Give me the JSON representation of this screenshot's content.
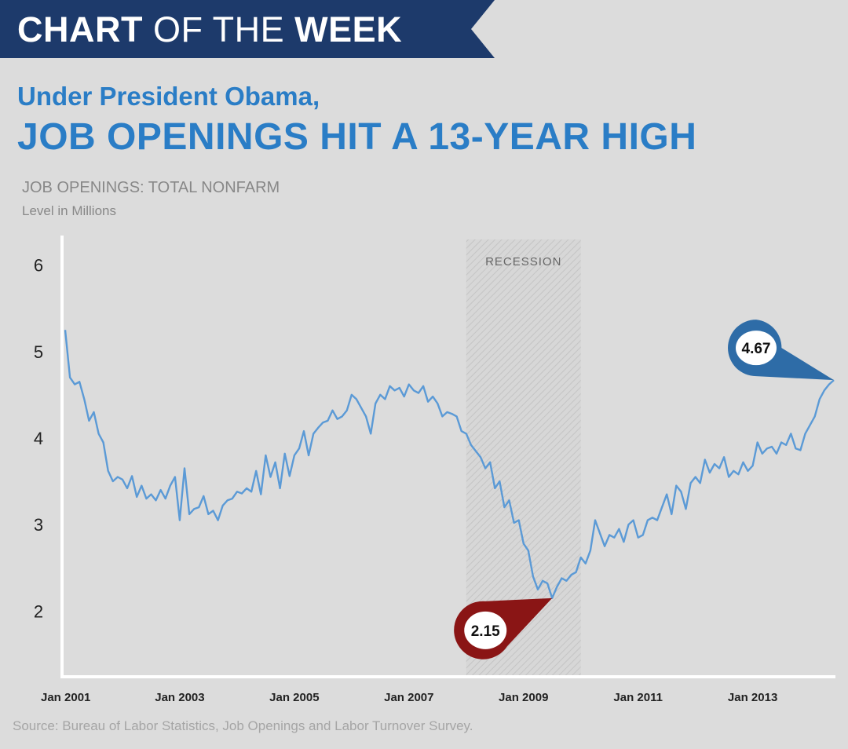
{
  "banner": {
    "part1": "CHART",
    "part2": " OF THE ",
    "part3": "WEEK",
    "color": "#1d3a6b"
  },
  "headline": {
    "subtitle": "Under President Obama,",
    "title": "JOB OPENINGS HIT A 13-YEAR HIGH",
    "color": "#2a7dc6"
  },
  "source": "Source: Bureau of Labor Statistics, Job Openings and Labor Turnover Survey.",
  "chart_data": {
    "type": "line",
    "title": "JOB OPENINGS: TOTAL NONFARM",
    "ylabel": "Level in Millions",
    "xlabel": "",
    "ylim": [
      1.25,
      6.25
    ],
    "yticks": [
      2,
      3,
      4,
      5,
      6
    ],
    "xlim": [
      "2001-01",
      "2014-06"
    ],
    "xticks": [
      {
        "date": "2001-01",
        "label": "Jan 2001"
      },
      {
        "date": "2003-01",
        "label": "Jan 2003"
      },
      {
        "date": "2005-01",
        "label": "Jan 2005"
      },
      {
        "date": "2007-01",
        "label": "Jan 2007"
      },
      {
        "date": "2009-01",
        "label": "Jan 2009"
      },
      {
        "date": "2011-01",
        "label": "Jan 2011"
      },
      {
        "date": "2013-01",
        "label": "Jan 2013"
      }
    ],
    "grid": false,
    "line_color": "#5b9ad6",
    "recession": {
      "start": "2008-01",
      "end": "2010-01",
      "label": "RECESSION"
    },
    "series": [
      {
        "points": [
          [
            "2001-01",
            5.25
          ],
          [
            "2001-02",
            4.7
          ],
          [
            "2001-03",
            4.62
          ],
          [
            "2001-04",
            4.65
          ],
          [
            "2001-05",
            4.45
          ],
          [
            "2001-06",
            4.2
          ],
          [
            "2001-07",
            4.3
          ],
          [
            "2001-08",
            4.05
          ],
          [
            "2001-09",
            3.95
          ],
          [
            "2001-10",
            3.62
          ],
          [
            "2001-11",
            3.5
          ],
          [
            "2001-12",
            3.55
          ],
          [
            "2002-01",
            3.52
          ],
          [
            "2002-02",
            3.42
          ],
          [
            "2002-03",
            3.56
          ],
          [
            "2002-04",
            3.32
          ],
          [
            "2002-05",
            3.45
          ],
          [
            "2002-06",
            3.3
          ],
          [
            "2002-07",
            3.35
          ],
          [
            "2002-08",
            3.28
          ],
          [
            "2002-09",
            3.4
          ],
          [
            "2002-10",
            3.3
          ],
          [
            "2002-11",
            3.45
          ],
          [
            "2002-12",
            3.55
          ],
          [
            "2003-01",
            3.05
          ],
          [
            "2003-02",
            3.65
          ],
          [
            "2003-03",
            3.12
          ],
          [
            "2003-04",
            3.18
          ],
          [
            "2003-05",
            3.2
          ],
          [
            "2003-06",
            3.33
          ],
          [
            "2003-07",
            3.12
          ],
          [
            "2003-08",
            3.16
          ],
          [
            "2003-09",
            3.05
          ],
          [
            "2003-10",
            3.22
          ],
          [
            "2003-11",
            3.28
          ],
          [
            "2003-12",
            3.3
          ],
          [
            "2004-01",
            3.38
          ],
          [
            "2004-02",
            3.36
          ],
          [
            "2004-03",
            3.42
          ],
          [
            "2004-04",
            3.38
          ],
          [
            "2004-05",
            3.62
          ],
          [
            "2004-06",
            3.35
          ],
          [
            "2004-07",
            3.8
          ],
          [
            "2004-08",
            3.55
          ],
          [
            "2004-09",
            3.72
          ],
          [
            "2004-10",
            3.42
          ],
          [
            "2004-11",
            3.82
          ],
          [
            "2004-12",
            3.56
          ],
          [
            "2005-01",
            3.8
          ],
          [
            "2005-02",
            3.88
          ],
          [
            "2005-03",
            4.08
          ],
          [
            "2005-04",
            3.8
          ],
          [
            "2005-05",
            4.05
          ],
          [
            "2005-06",
            4.12
          ],
          [
            "2005-07",
            4.18
          ],
          [
            "2005-08",
            4.2
          ],
          [
            "2005-09",
            4.32
          ],
          [
            "2005-10",
            4.22
          ],
          [
            "2005-11",
            4.25
          ],
          [
            "2005-12",
            4.32
          ],
          [
            "2006-01",
            4.5
          ],
          [
            "2006-02",
            4.45
          ],
          [
            "2006-03",
            4.35
          ],
          [
            "2006-04",
            4.25
          ],
          [
            "2006-05",
            4.05
          ],
          [
            "2006-06",
            4.4
          ],
          [
            "2006-07",
            4.5
          ],
          [
            "2006-08",
            4.45
          ],
          [
            "2006-09",
            4.6
          ],
          [
            "2006-10",
            4.55
          ],
          [
            "2006-11",
            4.58
          ],
          [
            "2006-12",
            4.48
          ],
          [
            "2007-01",
            4.62
          ],
          [
            "2007-02",
            4.55
          ],
          [
            "2007-03",
            4.52
          ],
          [
            "2007-04",
            4.6
          ],
          [
            "2007-05",
            4.42
          ],
          [
            "2007-06",
            4.48
          ],
          [
            "2007-07",
            4.4
          ],
          [
            "2007-08",
            4.25
          ],
          [
            "2007-09",
            4.3
          ],
          [
            "2007-10",
            4.28
          ],
          [
            "2007-11",
            4.25
          ],
          [
            "2007-12",
            4.08
          ],
          [
            "2008-01",
            4.05
          ],
          [
            "2008-02",
            3.92
          ],
          [
            "2008-03",
            3.85
          ],
          [
            "2008-04",
            3.78
          ],
          [
            "2008-05",
            3.65
          ],
          [
            "2008-06",
            3.72
          ],
          [
            "2008-07",
            3.42
          ],
          [
            "2008-08",
            3.5
          ],
          [
            "2008-09",
            3.2
          ],
          [
            "2008-10",
            3.28
          ],
          [
            "2008-11",
            3.02
          ],
          [
            "2008-12",
            3.05
          ],
          [
            "2009-01",
            2.78
          ],
          [
            "2009-02",
            2.7
          ],
          [
            "2009-03",
            2.4
          ],
          [
            "2009-04",
            2.25
          ],
          [
            "2009-05",
            2.35
          ],
          [
            "2009-06",
            2.32
          ],
          [
            "2009-07",
            2.15
          ],
          [
            "2009-08",
            2.28
          ],
          [
            "2009-09",
            2.38
          ],
          [
            "2009-10",
            2.35
          ],
          [
            "2009-11",
            2.42
          ],
          [
            "2009-12",
            2.45
          ],
          [
            "2010-01",
            2.62
          ],
          [
            "2010-02",
            2.55
          ],
          [
            "2010-03",
            2.7
          ],
          [
            "2010-04",
            3.05
          ],
          [
            "2010-05",
            2.9
          ],
          [
            "2010-06",
            2.75
          ],
          [
            "2010-07",
            2.88
          ],
          [
            "2010-08",
            2.85
          ],
          [
            "2010-09",
            2.95
          ],
          [
            "2010-10",
            2.8
          ],
          [
            "2010-11",
            3.0
          ],
          [
            "2010-12",
            3.05
          ],
          [
            "2011-01",
            2.85
          ],
          [
            "2011-02",
            2.88
          ],
          [
            "2011-03",
            3.05
          ],
          [
            "2011-04",
            3.08
          ],
          [
            "2011-05",
            3.05
          ],
          [
            "2011-06",
            3.2
          ],
          [
            "2011-07",
            3.35
          ],
          [
            "2011-08",
            3.12
          ],
          [
            "2011-09",
            3.45
          ],
          [
            "2011-10",
            3.38
          ],
          [
            "2011-11",
            3.18
          ],
          [
            "2011-12",
            3.48
          ],
          [
            "2012-01",
            3.55
          ],
          [
            "2012-02",
            3.48
          ],
          [
            "2012-03",
            3.75
          ],
          [
            "2012-04",
            3.6
          ],
          [
            "2012-05",
            3.7
          ],
          [
            "2012-06",
            3.65
          ],
          [
            "2012-07",
            3.78
          ],
          [
            "2012-08",
            3.55
          ],
          [
            "2012-09",
            3.62
          ],
          [
            "2012-10",
            3.58
          ],
          [
            "2012-11",
            3.72
          ],
          [
            "2012-12",
            3.62
          ],
          [
            "2013-01",
            3.68
          ],
          [
            "2013-02",
            3.95
          ],
          [
            "2013-03",
            3.82
          ],
          [
            "2013-04",
            3.88
          ],
          [
            "2013-05",
            3.9
          ],
          [
            "2013-06",
            3.82
          ],
          [
            "2013-07",
            3.95
          ],
          [
            "2013-08",
            3.92
          ],
          [
            "2013-09",
            4.05
          ],
          [
            "2013-10",
            3.88
          ],
          [
            "2013-11",
            3.86
          ],
          [
            "2013-12",
            4.05
          ],
          [
            "2014-01",
            4.15
          ],
          [
            "2014-02",
            4.25
          ],
          [
            "2014-03",
            4.45
          ],
          [
            "2014-04",
            4.55
          ],
          [
            "2014-05",
            4.62
          ],
          [
            "2014-06",
            4.67
          ]
        ]
      }
    ],
    "annotations": [
      {
        "date": "2014-06",
        "value": 4.67,
        "label": "4.67",
        "color": "#2e6ca7"
      },
      {
        "date": "2009-07",
        "value": 2.15,
        "label": "2.15",
        "color": "#8a1515"
      }
    ]
  }
}
